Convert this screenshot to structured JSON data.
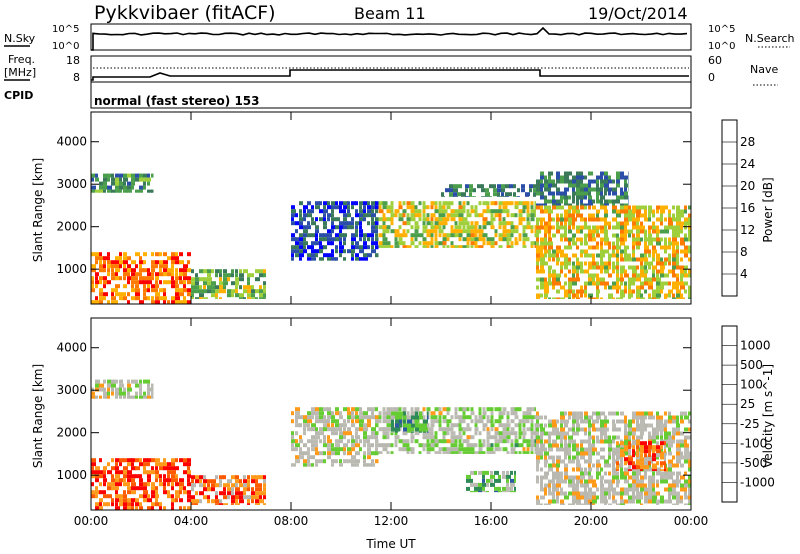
{
  "header": {
    "station": "Pykkvibaer (fitACF)",
    "beam": "Beam 11",
    "date": "19/Oct/2014"
  },
  "panels": {
    "nsky": {
      "left_label": "N.Sky",
      "right_label": "N.Search",
      "tick_top": "10^5",
      "tick_bottom": "10^0"
    },
    "freq": {
      "left_label_1": "Freq.",
      "left_label_2": "[MHz]",
      "right_label": "Nave",
      "left_tick_top": "18",
      "left_tick_bottom": "8",
      "right_tick_top": "60",
      "right_tick_bottom": "0"
    },
    "cpid": {
      "label": "CPID",
      "value": "normal (fast stereo) 153"
    }
  },
  "colors": {
    "power": [
      "#0000ff",
      "#2b4fa8",
      "#3a7a5a",
      "#4b9e4b",
      "#9fd03c",
      "#ffb000",
      "#ff7a00",
      "#ff0000"
    ],
    "velocity": [
      "#ff0000",
      "#ff5a00",
      "#ff9a1a",
      "#b8b8b0",
      "#bcbcb4",
      "#66cc33",
      "#2e8b57",
      "#2d5aa0",
      "#1b2fb0"
    ]
  },
  "chart_data": [
    {
      "type": "heatmap",
      "title": "Power",
      "xlabel": "",
      "ylabel": "Slant Range [km]",
      "x_ticks": [
        "00:00",
        "04:00",
        "08:00",
        "12:00",
        "16:00",
        "20:00",
        "00:00"
      ],
      "y_ticks": [
        "1000",
        "2000",
        "3000",
        "4000"
      ],
      "xlim": [
        0,
        24
      ],
      "ylim": [
        180,
        4700
      ],
      "colorbar": {
        "label": "Power [dB]",
        "ticks": [
          "4",
          "8",
          "12",
          "16",
          "20",
          "24",
          "28"
        ]
      },
      "regions": [
        {
          "t0": 0.0,
          "t1": 4.0,
          "r0": 180,
          "r1": 1400,
          "level": 0.8
        },
        {
          "t0": 0.0,
          "t1": 2.5,
          "r0": 2800,
          "r1": 3250,
          "level": 0.4
        },
        {
          "t0": 4.0,
          "t1": 7.0,
          "r0": 300,
          "r1": 1000,
          "level": 0.5
        },
        {
          "t0": 8.0,
          "t1": 11.5,
          "r0": 1200,
          "r1": 2600,
          "level": 0.2
        },
        {
          "t0": 11.5,
          "t1": 17.8,
          "r0": 1500,
          "r1": 2600,
          "level": 0.6
        },
        {
          "t0": 14.0,
          "t1": 17.8,
          "r0": 2700,
          "r1": 3000,
          "level": 0.3
        },
        {
          "t0": 17.8,
          "t1": 24.0,
          "r0": 300,
          "r1": 2500,
          "level": 0.65
        },
        {
          "t0": 17.8,
          "t1": 21.5,
          "r0": 2500,
          "r1": 3300,
          "level": 0.3
        }
      ]
    },
    {
      "type": "heatmap",
      "title": "Velocity",
      "xlabel": "Time UT",
      "ylabel": "Slant Range [km]",
      "x_ticks": [
        "00:00",
        "04:00",
        "08:00",
        "12:00",
        "16:00",
        "20:00",
        "00:00"
      ],
      "y_ticks": [
        "1000",
        "2000",
        "3000",
        "4000"
      ],
      "xlim": [
        0,
        24
      ],
      "ylim": [
        180,
        4700
      ],
      "colorbar": {
        "label": "Velocity [m s^-1]",
        "ticks": [
          "-1000",
          "-500",
          "-100",
          "-25",
          "25",
          "100",
          "500",
          "1000"
        ]
      },
      "regions": [
        {
          "t0": 0.0,
          "t1": 4.0,
          "r0": 180,
          "r1": 1400,
          "level": 0.15
        },
        {
          "t0": 0.0,
          "t1": 2.5,
          "r0": 2800,
          "r1": 3250,
          "level": 0.45
        },
        {
          "t0": 4.0,
          "t1": 7.0,
          "r0": 300,
          "r1": 1000,
          "level": 0.2
        },
        {
          "t0": 8.0,
          "t1": 11.5,
          "r0": 1200,
          "r1": 2600,
          "level": 0.45
        },
        {
          "t0": 11.5,
          "t1": 17.8,
          "r0": 1500,
          "r1": 2600,
          "level": 0.5
        },
        {
          "t0": 12.0,
          "t1": 13.5,
          "r0": 2000,
          "r1": 2500,
          "level": 0.7
        },
        {
          "t0": 17.8,
          "t1": 24.0,
          "r0": 300,
          "r1": 2500,
          "level": 0.45
        },
        {
          "t0": 15.0,
          "t1": 17.0,
          "r0": 600,
          "r1": 1100,
          "level": 0.65
        },
        {
          "t0": 21.0,
          "t1": 23.0,
          "r0": 1100,
          "r1": 1800,
          "level": 0.2
        }
      ]
    }
  ]
}
